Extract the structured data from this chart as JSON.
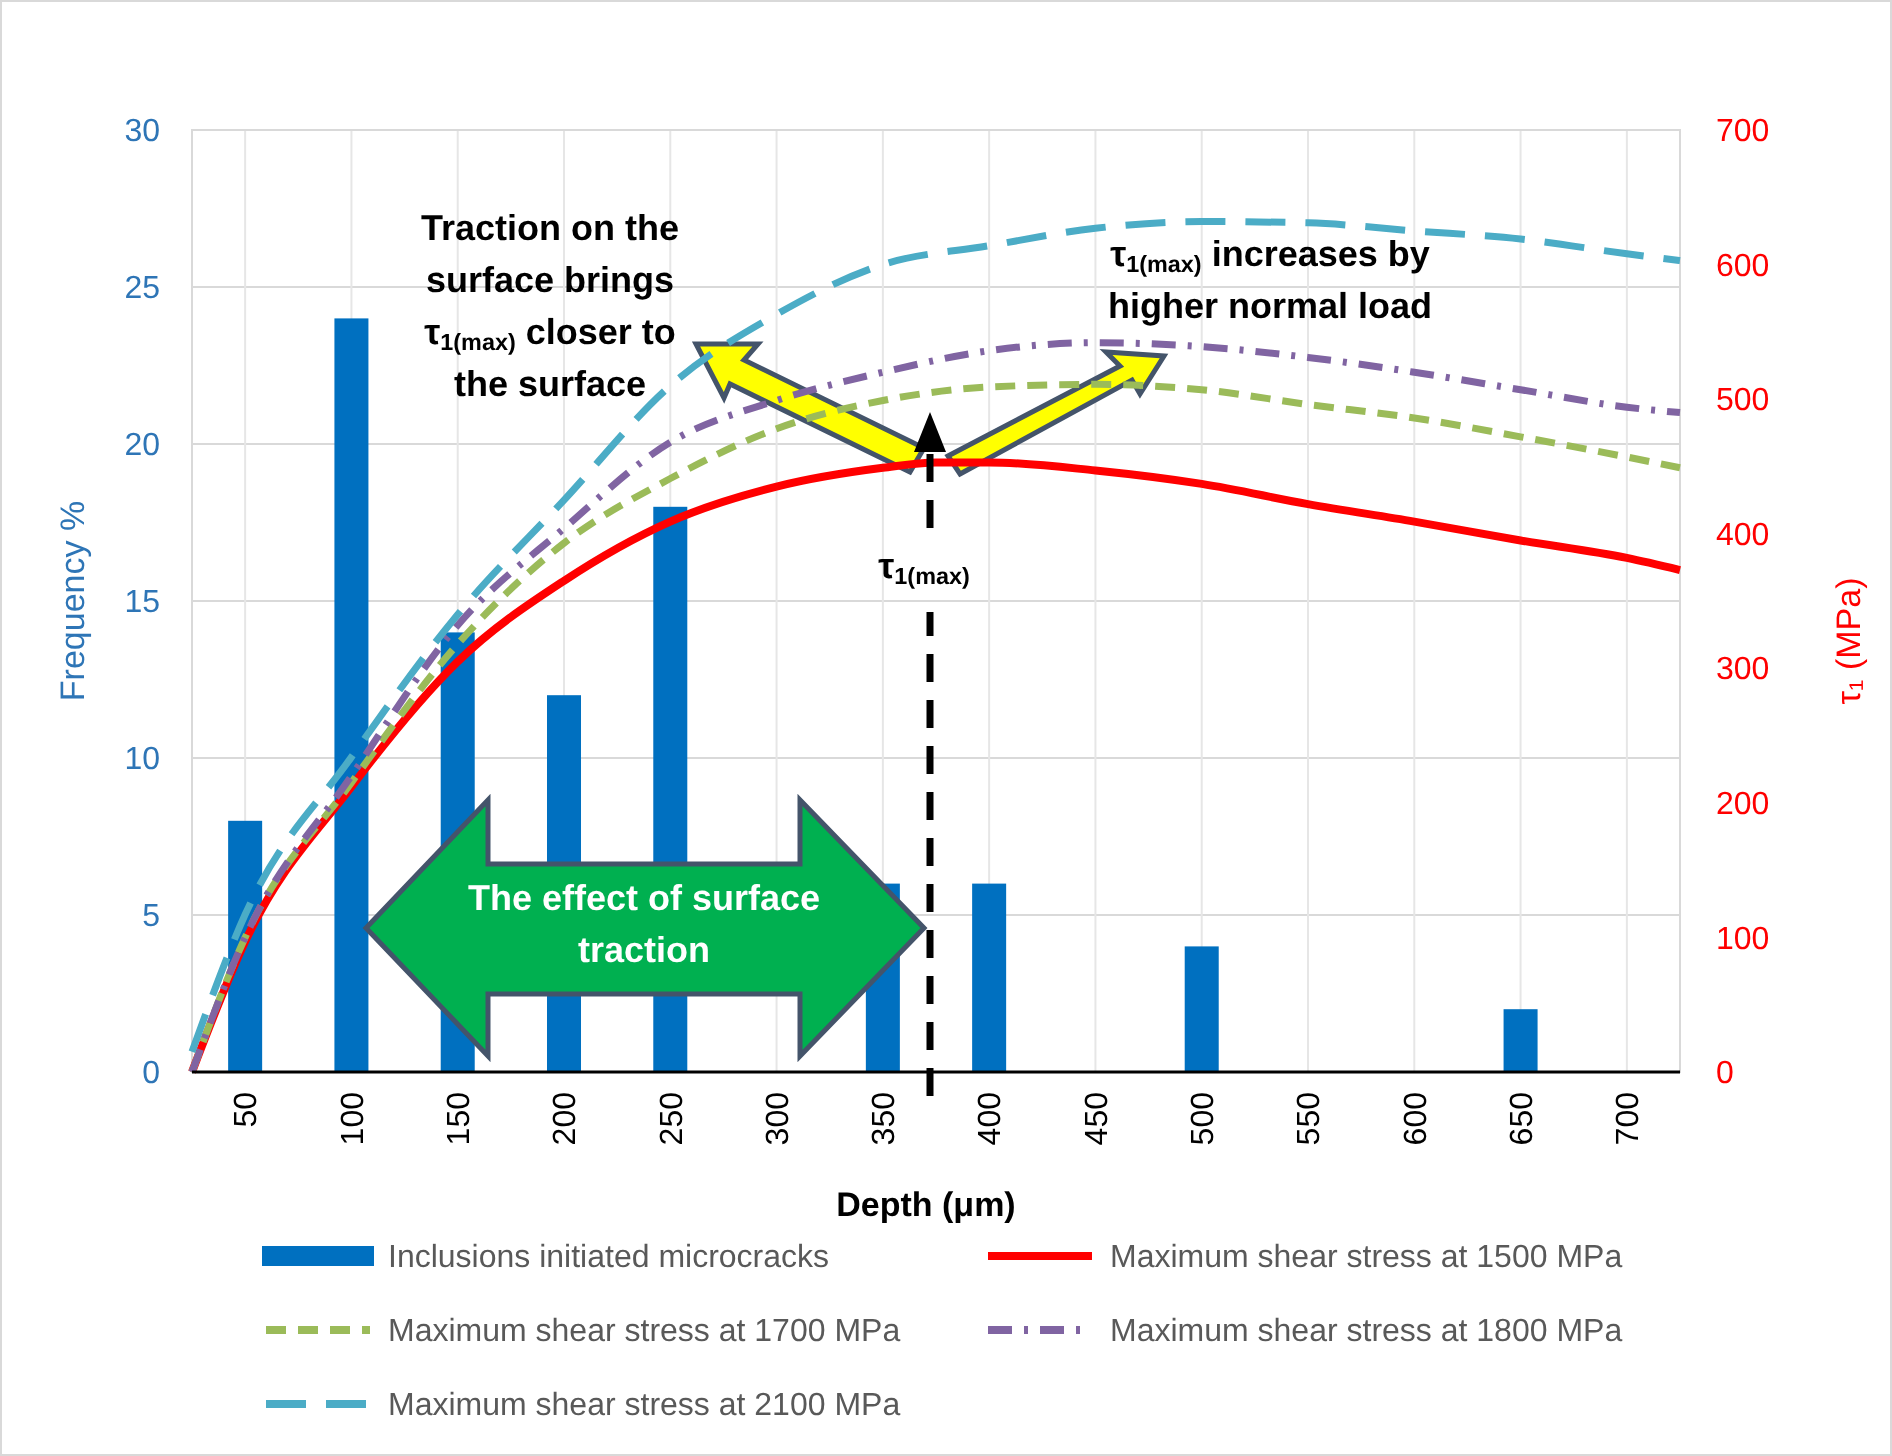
{
  "chart_data": {
    "type": "bar",
    "xlabel": "Depth (μm)",
    "ylabel": "Frequency  %",
    "y2label": "τ₁ (MPa)",
    "xlim": [
      25,
      725
    ],
    "xticks": [
      50,
      100,
      150,
      200,
      250,
      300,
      350,
      400,
      450,
      500,
      550,
      600,
      650,
      700
    ],
    "ylim": [
      0,
      30
    ],
    "yticks": [
      0,
      5,
      10,
      15,
      20,
      25,
      30
    ],
    "y2lim": [
      0,
      700
    ],
    "y2ticks": [
      0,
      100,
      200,
      300,
      400,
      500,
      600,
      700
    ],
    "grid": true,
    "legend": "bottom",
    "annotations": [
      "Traction on the surface brings τ$_{1(max)}$ closer to the surface",
      "τ$_{1(max)}$ increases by higher normal load",
      "τ$_{1(max)}$",
      "The effect of surface traction"
    ],
    "series": [
      {
        "name": "Inclusions initiated microcracks",
        "color": "#0070c0",
        "x": [
          50,
          100,
          150,
          200,
          250,
          350,
          400,
          500,
          650
        ],
        "values": [
          8,
          24,
          14,
          12,
          18,
          6,
          6,
          4,
          2
        ]
      },
      {
        "name": "Maximum shear stress at 1500 MPa",
        "type": "line",
        "axis": "y2",
        "line_style": "solid",
        "color": "#ff0000",
        "x": [
          25,
          50,
          100,
          150,
          200,
          250,
          300,
          350,
          375,
          400,
          450,
          500,
          550,
          600,
          650,
          700,
          725
        ],
        "values": [
          0,
          97,
          212,
          305,
          365,
          409,
          435,
          449,
          453,
          453,
          447,
          437,
          422,
          409,
          395,
          382,
          373
        ]
      },
      {
        "name": "Maximum shear stress at 1700 MPa",
        "type": "line",
        "axis": "y2",
        "line_style": "dashed",
        "color": "#9bbb59",
        "x": [
          25,
          50,
          100,
          150,
          200,
          250,
          300,
          350,
          400,
          450,
          500,
          550,
          600,
          650,
          700,
          725
        ],
        "values": [
          0,
          100,
          215,
          318,
          393,
          441,
          478,
          499,
          509,
          511,
          507,
          496,
          486,
          472,
          457,
          449
        ]
      },
      {
        "name": "Maximum shear stress at 1800 MPa",
        "type": "line",
        "axis": "y2",
        "line_style": "dashdot",
        "color": "#8064a2",
        "x": [
          25,
          50,
          100,
          150,
          200,
          250,
          300,
          350,
          400,
          450,
          500,
          550,
          600,
          650,
          700,
          725
        ],
        "values": [
          0,
          100,
          220,
          332,
          404,
          468,
          499,
          520,
          536,
          542,
          539,
          531,
          520,
          507,
          494,
          490
        ]
      },
      {
        "name": "Maximum shear stress at 2100 MPa",
        "type": "line",
        "axis": "y2",
        "line_style": "longdash",
        "color": "#4bacc6",
        "x": [
          25,
          50,
          100,
          150,
          200,
          250,
          300,
          350,
          400,
          450,
          500,
          550,
          600,
          650,
          700,
          725
        ],
        "values": [
          15,
          117,
          234,
          340,
          425,
          510,
          563,
          600,
          614,
          627,
          632,
          631,
          625,
          619,
          608,
          603
        ]
      }
    ]
  }
}
